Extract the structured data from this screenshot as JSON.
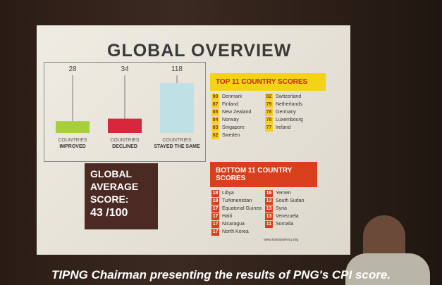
{
  "slide": {
    "title": "GLOBAL OVERVIEW",
    "changes": [
      {
        "value": 28,
        "label": "COUNTRIES",
        "sublabel": "IMPROVED",
        "color": "#a6cf3b"
      },
      {
        "value": 34,
        "label": "COUNTRIES",
        "sublabel": "DECLINED",
        "color": "#d8263c"
      },
      {
        "value": 118,
        "label": "COUNTRIES",
        "sublabel": "STAYED THE SAME",
        "color": "#bfe0e4"
      }
    ],
    "average": {
      "label": "GLOBAL AVERAGE SCORE:",
      "score": "43 /100"
    },
    "top": {
      "title": "TOP 11 COUNTRY SCORES",
      "rows": [
        {
          "score": 90,
          "country": "Denmark"
        },
        {
          "score": 87,
          "country": "Finland"
        },
        {
          "score": 85,
          "country": "New Zealand"
        },
        {
          "score": 84,
          "country": "Norway"
        },
        {
          "score": 83,
          "country": "Singapore"
        },
        {
          "score": 82,
          "country": "Sweden"
        },
        {
          "score": 82,
          "country": "Switzerland"
        },
        {
          "score": 79,
          "country": "Netherlands"
        },
        {
          "score": 78,
          "country": "Germany"
        },
        {
          "score": 78,
          "country": "Luxembourg"
        },
        {
          "score": 77,
          "country": "Ireland"
        }
      ]
    },
    "bottom": {
      "title": "BOTTOM 11 COUNTRY SCORES",
      "rows": [
        {
          "score": 18,
          "country": "Libya"
        },
        {
          "score": 18,
          "country": "Turkmenistan"
        },
        {
          "score": 17,
          "country": "Equatorial Guinea"
        },
        {
          "score": 17,
          "country": "Haiti"
        },
        {
          "score": 17,
          "country": "Nicaragua"
        },
        {
          "score": 17,
          "country": "North Korea"
        },
        {
          "score": 16,
          "country": "Yemen"
        },
        {
          "score": 13,
          "country": "South Sudan"
        },
        {
          "score": 13,
          "country": "Syria"
        },
        {
          "score": 13,
          "country": "Venezuela"
        },
        {
          "score": 11,
          "country": "Somalia"
        }
      ]
    },
    "source": "www.transparency.org"
  },
  "caption": "TIPNG Chairman presenting the results of PNG's CPI score."
}
